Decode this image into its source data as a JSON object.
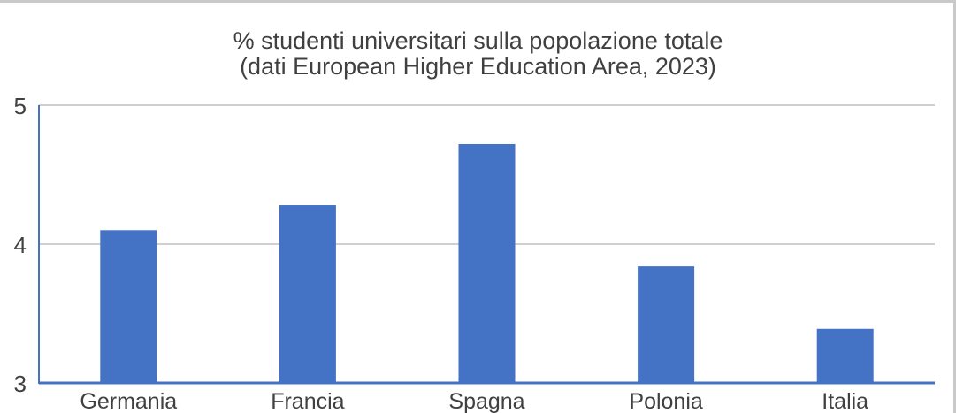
{
  "chart_data": {
    "type": "bar",
    "title_line1": "% studenti universitari sulla popolazione totale",
    "title_line2": "(dati European Higher Education Area, 2023)",
    "categories": [
      "Germania",
      "Francia",
      "Spagna",
      "Polonia",
      "Italia"
    ],
    "values": [
      4.1,
      4.28,
      4.72,
      3.84,
      3.39
    ],
    "ylim": [
      3,
      5
    ],
    "yticks": [
      "3",
      "4",
      "5"
    ],
    "grid": true,
    "legend": "none",
    "bar_color": "#4472c4",
    "grid_color": "#cfcfcf",
    "axis_color": "#4472c4",
    "text_color": "#404040"
  }
}
